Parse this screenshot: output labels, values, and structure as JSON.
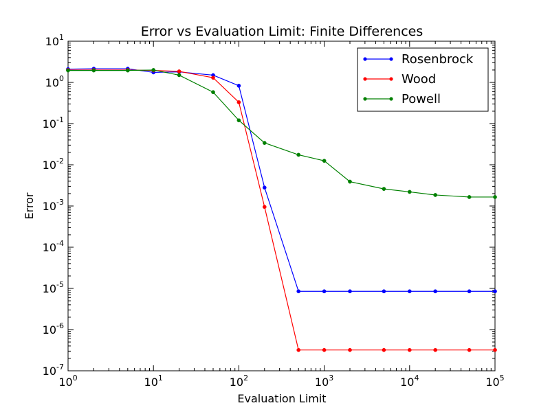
{
  "chart_data": {
    "type": "line",
    "title": "Error vs Evaluation Limit: Finite Differences",
    "xlabel": "Evaluation Limit",
    "ylabel": "Error",
    "xscale": "log",
    "yscale": "log",
    "xlim": [
      1,
      100000
    ],
    "ylim": [
      1e-07,
      10
    ],
    "x_ticks": [
      {
        "base": "10",
        "exp": "0",
        "value": 1
      },
      {
        "base": "10",
        "exp": "1",
        "value": 10
      },
      {
        "base": "10",
        "exp": "2",
        "value": 100
      },
      {
        "base": "10",
        "exp": "3",
        "value": 1000
      },
      {
        "base": "10",
        "exp": "4",
        "value": 10000
      },
      {
        "base": "10",
        "exp": "5",
        "value": 100000
      }
    ],
    "y_ticks": [
      {
        "base": "10",
        "exp": "-7",
        "value": 1e-07
      },
      {
        "base": "10",
        "exp": "-6",
        "value": 1e-06
      },
      {
        "base": "10",
        "exp": "-5",
        "value": 1e-05
      },
      {
        "base": "10",
        "exp": "-4",
        "value": 0.0001
      },
      {
        "base": "10",
        "exp": "-3",
        "value": 0.001
      },
      {
        "base": "10",
        "exp": "-2",
        "value": 0.01
      },
      {
        "base": "10",
        "exp": "-1",
        "value": 0.1
      },
      {
        "base": "10",
        "exp": "0",
        "value": 1
      },
      {
        "base": "10",
        "exp": "1",
        "value": 10
      }
    ],
    "x": [
      1,
      2,
      5,
      10,
      20,
      50,
      100,
      200,
      500,
      1000,
      2000,
      5000,
      10000,
      20000,
      50000,
      100000
    ],
    "series": [
      {
        "name": "Rosenbrock",
        "color": "#0000ff",
        "values": [
          2.1,
          2.15,
          2.15,
          1.75,
          1.8,
          1.5,
          0.83,
          0.0028,
          8.5e-06,
          8.5e-06,
          8.5e-06,
          8.5e-06,
          8.5e-06,
          8.5e-06,
          8.5e-06,
          8.5e-06
        ]
      },
      {
        "name": "Wood",
        "color": "#ff0000",
        "values": [
          2.0,
          2.0,
          2.0,
          1.95,
          1.85,
          1.3,
          0.33,
          0.00095,
          3.2e-07,
          3.2e-07,
          3.2e-07,
          3.2e-07,
          3.2e-07,
          3.2e-07,
          3.2e-07,
          3.2e-07
        ]
      },
      {
        "name": "Powell",
        "color": "#008000",
        "values": [
          1.95,
          1.95,
          1.95,
          2.0,
          1.5,
          0.58,
          0.12,
          0.034,
          0.0175,
          0.0125,
          0.0039,
          0.0026,
          0.0022,
          0.00185,
          0.00165,
          0.00165
        ]
      }
    ],
    "legend_position": "top-right"
  }
}
